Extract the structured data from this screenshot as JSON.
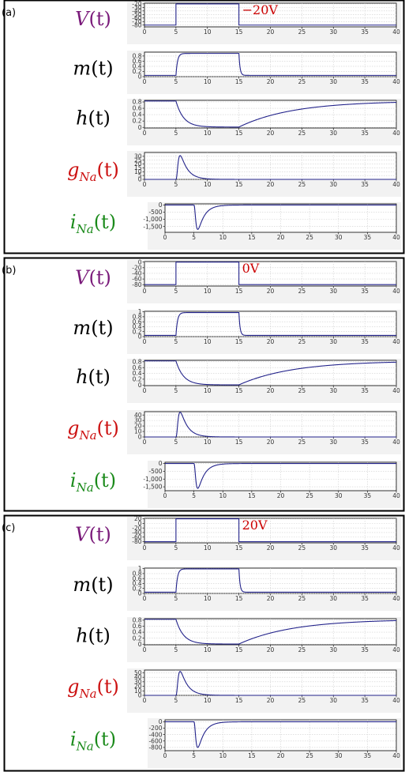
{
  "colors": {
    "V": "#7a1a7a",
    "m": "#000000",
    "h": "#000000",
    "gNa": "#cc1111",
    "iNa": "#1a8a1a",
    "trace": "#22228a",
    "voltage_label": "#cc0000"
  },
  "row_labels": {
    "V": {
      "main": "V",
      "args": "(t)"
    },
    "m": {
      "main": "m",
      "args": "(t)"
    },
    "h": {
      "main": "h",
      "args": "(t)"
    },
    "gNa": {
      "main": "g",
      "sub": "Na",
      "args": "(t)"
    },
    "iNa": {
      "main": "i",
      "sub": "Na",
      "args": "(t)"
    }
  },
  "chart_data": [
    {
      "panel": "(a)",
      "voltage_label": "−20V",
      "type": "line",
      "x_range": [
        0,
        40
      ],
      "x_ticks": [
        "0",
        "5",
        "10",
        "15",
        "20",
        "25",
        "30",
        "35",
        "40"
      ],
      "traces": {
        "V": {
          "y_range": [
            -85,
            -18
          ],
          "y_ticks": [
            "-20",
            "-30",
            "-40",
            "-50",
            "-60",
            "-70",
            "-80"
          ],
          "rest": -80,
          "step": -20,
          "t_on": 5,
          "t_off": 15
        },
        "m": {
          "y_range": [
            0,
            0.95
          ],
          "y_ticks": [
            "0.8",
            "0.6",
            "0.4",
            "0.2",
            "0"
          ],
          "rest": 0.05,
          "peak": 0.9
        },
        "h": {
          "y_range": [
            -0.02,
            0.85
          ],
          "y_ticks": [
            "0.8",
            "0.6",
            "0.4",
            "0.2",
            "0"
          ],
          "rest": 0.83,
          "min": 0.01
        },
        "gNa": {
          "y_range": [
            0,
            35
          ],
          "y_ticks": [
            "30",
            "25",
            "20",
            "15",
            "10",
            "5",
            "0"
          ],
          "peak": 31,
          "t_peak": 5.6
        },
        "iNa": {
          "y_range": [
            -1900,
            80
          ],
          "y_ticks": [
            "0",
            "-500",
            "-1,000",
            "-1,500"
          ],
          "peak": -1700,
          "t_peak": 6.0
        }
      }
    },
    {
      "panel": "(b)",
      "voltage_label": "0V",
      "type": "line",
      "x_range": [
        0,
        40
      ],
      "x_ticks": [
        "0",
        "5",
        "10",
        "15",
        "20",
        "25",
        "30",
        "35",
        "40"
      ],
      "traces": {
        "V": {
          "y_range": [
            -85,
            2
          ],
          "y_ticks": [
            "0",
            "-20",
            "-40",
            "-60",
            "-80"
          ],
          "rest": -80,
          "step": 0,
          "t_on": 5,
          "t_off": 15
        },
        "m": {
          "y_range": [
            0,
            1.02
          ],
          "y_ticks": [
            "1",
            "0.8",
            "0.6",
            "0.4",
            "0.2",
            "0"
          ],
          "rest": 0.05,
          "peak": 0.97
        },
        "h": {
          "y_range": [
            -0.02,
            0.85
          ],
          "y_ticks": [
            "0.8",
            "0.6",
            "0.4",
            "0.2",
            "0"
          ],
          "rest": 0.83,
          "min": 0.005
        },
        "gNa": {
          "y_range": [
            0,
            46
          ],
          "y_ticks": [
            "40",
            "30",
            "20",
            "10",
            "0"
          ],
          "peak": 45,
          "t_peak": 5.4
        },
        "iNa": {
          "y_range": [
            -1750,
            80
          ],
          "y_ticks": [
            "0",
            "-500",
            "-1,000",
            "-1,500"
          ],
          "peak": -1600,
          "t_peak": 5.8
        }
      }
    },
    {
      "panel": "(c)",
      "voltage_label": "20V",
      "type": "line",
      "x_range": [
        0,
        40
      ],
      "x_ticks": [
        "0",
        "5",
        "10",
        "15",
        "20",
        "25",
        "30",
        "35",
        "40"
      ],
      "traces": {
        "V": {
          "y_range": [
            -85,
            22
          ],
          "y_ticks": [
            "20",
            "0",
            "-20",
            "-40",
            "-60",
            "-80"
          ],
          "rest": -80,
          "step": 20,
          "t_on": 5,
          "t_off": 15
        },
        "m": {
          "y_range": [
            0,
            1.02
          ],
          "y_ticks": [
            "1",
            "0.8",
            "0.6",
            "0.4",
            "0.2",
            "0"
          ],
          "rest": 0.05,
          "peak": 0.99
        },
        "h": {
          "y_range": [
            -0.02,
            0.85
          ],
          "y_ticks": [
            "0.8",
            "0.6",
            "0.4",
            "0.2",
            "0"
          ],
          "rest": 0.83,
          "min": 0.005
        },
        "gNa": {
          "y_range": [
            0,
            56
          ],
          "y_ticks": [
            "50",
            "40",
            "30",
            "20",
            "10",
            "0"
          ],
          "peak": 53,
          "t_peak": 5.3
        },
        "iNa": {
          "y_range": [
            -900,
            60
          ],
          "y_ticks": [
            "0",
            "-200",
            "-400",
            "-600",
            "-800"
          ],
          "peak": -800,
          "t_peak": 5.6
        }
      }
    }
  ]
}
